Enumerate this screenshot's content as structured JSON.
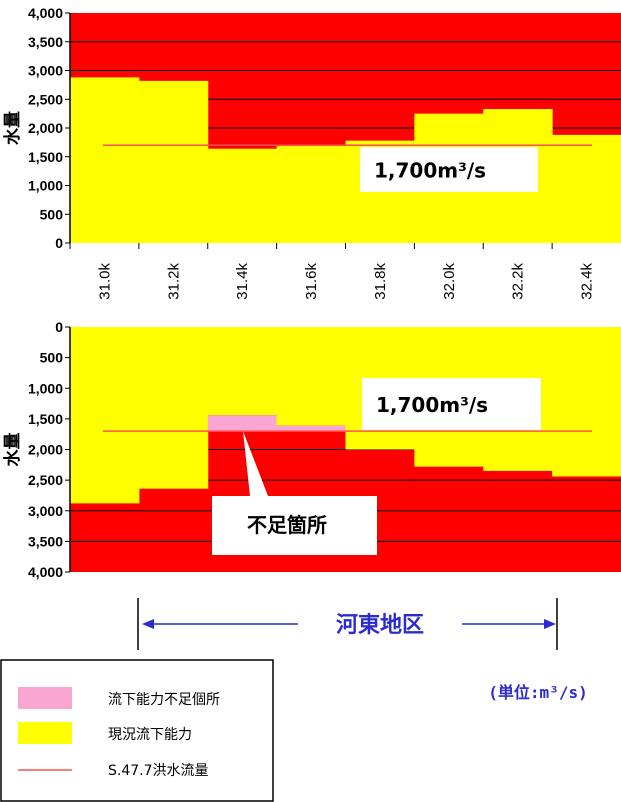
{
  "chart_data": [
    {
      "type": "area",
      "direction": "up",
      "ylabel": "水量",
      "ylim": [
        0,
        4000
      ],
      "yticks": [
        "0",
        "500",
        "1,000",
        "1,500",
        "2,000",
        "2,500",
        "3,000",
        "3,500",
        "4,000"
      ],
      "categories": [
        "31.0k",
        "31.2k",
        "31.4k",
        "31.6k",
        "31.8k",
        "32.0k",
        "32.2k",
        "32.4k"
      ],
      "capacity": [
        2880,
        2820,
        1640,
        1700,
        1780,
        2250,
        2330,
        1880
      ],
      "flood_flow": 1700,
      "callout_label": "1,700m³/s"
    },
    {
      "type": "area",
      "direction": "down",
      "ylabel": "水量",
      "ylim": [
        0,
        4000
      ],
      "yticks": [
        "0",
        "500",
        "1,000",
        "1,500",
        "2,000",
        "2,500",
        "3,000",
        "3,500",
        "4,000"
      ],
      "categories": [
        "31.0k",
        "31.2k",
        "31.4k",
        "31.6k",
        "31.8k",
        "32.0k",
        "32.2k",
        "32.4k"
      ],
      "capacity": [
        2880,
        2640,
        1440,
        1610,
        2000,
        2280,
        2350,
        2440
      ],
      "flood_flow": 1700,
      "callout_label": "1,700m³/s",
      "shortage_label": "不足箇所"
    }
  ],
  "district_label": "河東地区",
  "unit_label": "(単位:m³/s)",
  "legend": [
    {
      "label": "流下能力不足個所",
      "color": "#f9a6d2",
      "kind": "box"
    },
    {
      "label": "現況流下能力",
      "color": "#ffff00",
      "kind": "box"
    },
    {
      "label": "S.47.7洪水流量",
      "color": "#ff5050",
      "kind": "line"
    }
  ],
  "colors": {
    "deficit": "#ff0000",
    "capacity": "#ffff00",
    "shortage": "#f9a6d2",
    "flood_line": "#ff5050",
    "accent": "#2b2bd0"
  }
}
